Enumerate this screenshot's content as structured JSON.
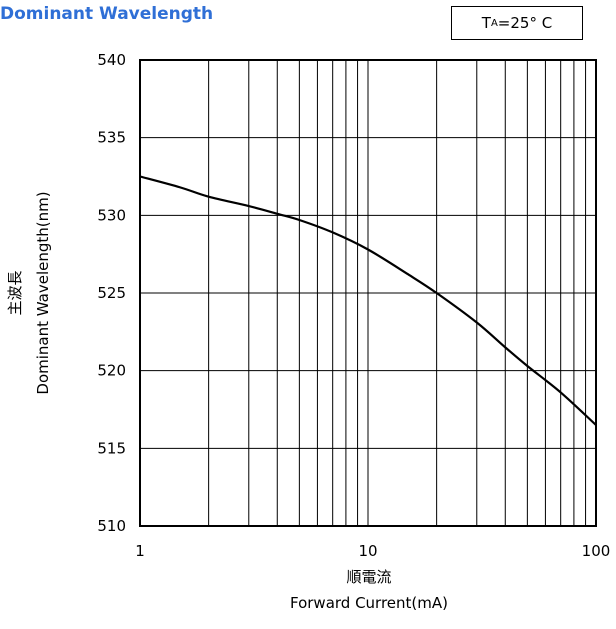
{
  "chart_data": {
    "type": "line",
    "title": "Dominant Wavelength",
    "condition": {
      "prefix": "T",
      "subscript": "A",
      "suffix": "=25° C"
    },
    "xlabel_jp": "順電流",
    "xlabel": "Forward Current(mA)",
    "ylabel_jp": "主波長",
    "ylabel": "Dominant Wavelength(nm)",
    "x_scale": "log",
    "xlim": [
      1,
      100
    ],
    "ylim": [
      510,
      540
    ],
    "x_ticks": [
      1,
      10,
      100
    ],
    "x_tick_labels": [
      "1",
      "10",
      "100"
    ],
    "y_ticks": [
      510,
      515,
      520,
      525,
      530,
      535,
      540
    ],
    "y_tick_labels": [
      "510",
      "515",
      "520",
      "525",
      "530",
      "535",
      "540"
    ],
    "grid": true,
    "series": [
      {
        "x": [
          1,
          1.5,
          2,
          3,
          4,
          5,
          7,
          10,
          15,
          20,
          30,
          40,
          50,
          70,
          100
        ],
        "y": [
          532.5,
          531.8,
          531.2,
          530.6,
          530.1,
          529.7,
          528.9,
          527.8,
          526.2,
          525.0,
          523.1,
          521.5,
          520.3,
          518.6,
          516.5
        ]
      }
    ]
  }
}
